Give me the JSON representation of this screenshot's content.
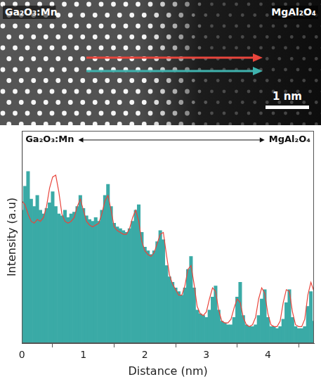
{
  "image": {
    "left_label": "Ga₂O₃:Mn",
    "right_label": "MgAl₂O₄",
    "scale_bar": "1 nm"
  },
  "chart_data": {
    "type": "bar",
    "x_label": "Distance (nm)",
    "y_label": "Intensity (a.u)",
    "annotation": {
      "left": "Ga₂O₃:Mn",
      "right": "MgAl₂O₄"
    },
    "xlim": [
      0,
      4.75
    ],
    "xticks": [
      0,
      1,
      2,
      3,
      4
    ],
    "ylim": [
      0,
      115
    ],
    "grid": false,
    "tick_labels": "x",
    "x": [
      0,
      0.05,
      0.1,
      0.15,
      0.2,
      0.25,
      0.3,
      0.35,
      0.4,
      0.45,
      0.5,
      0.55,
      0.6,
      0.65,
      0.7,
      0.75,
      0.8,
      0.85,
      0.9,
      0.95,
      1,
      1.05,
      1.1,
      1.15,
      1.2,
      1.25,
      1.3,
      1.35,
      1.4,
      1.45,
      1.5,
      1.55,
      1.6,
      1.65,
      1.7,
      1.75,
      1.8,
      1.85,
      1.9,
      1.95,
      2,
      2.05,
      2.1,
      2.15,
      2.2,
      2.25,
      2.3,
      2.35,
      2.4,
      2.45,
      2.5,
      2.55,
      2.6,
      2.65,
      2.7,
      2.75,
      2.8,
      2.85,
      2.9,
      2.95,
      3,
      3.05,
      3.1,
      3.15,
      3.2,
      3.25,
      3.3,
      3.35,
      3.4,
      3.45,
      3.5,
      3.55,
      3.6,
      3.65,
      3.7,
      3.75,
      3.8,
      3.85,
      3.9,
      3.95,
      4,
      4.05,
      4.1,
      4.15,
      4.2,
      4.25,
      4.3,
      4.35,
      4.4,
      4.45,
      4.5,
      4.55,
      4.6,
      4.65,
      4.7,
      4.75
    ],
    "series": [
      {
        "type": "bar",
        "color": "#3aaaa6",
        "values": [
          72,
          85,
          93,
          78,
          74,
          80,
          72,
          70,
          73,
          76,
          82,
          74,
          70,
          69,
          72,
          68,
          70,
          71,
          74,
          80,
          73,
          69,
          67,
          66,
          68,
          66,
          72,
          80,
          86,
          74,
          65,
          63,
          62,
          61,
          60,
          62,
          66,
          72,
          75,
          60,
          52,
          50,
          48,
          50,
          55,
          61,
          56,
          42,
          36,
          33,
          30,
          28,
          26,
          30,
          40,
          47,
          30,
          18,
          16,
          15,
          14,
          18,
          25,
          31,
          18,
          12,
          11,
          10,
          10,
          14,
          25,
          33,
          15,
          10,
          9,
          9,
          10,
          15,
          24,
          29,
          14,
          9,
          9,
          8,
          9,
          13,
          22,
          29,
          14,
          9,
          8,
          8,
          9,
          20,
          28,
          12
        ]
      },
      {
        "type": "line",
        "color": "#e8453c",
        "line_style": "solid",
        "marker": "none",
        "values": [
          77,
          75,
          70,
          66,
          65,
          67,
          66,
          68,
          74,
          84,
          90,
          91,
          82,
          70,
          66,
          65,
          66,
          68,
          74,
          78,
          72,
          66,
          64,
          63,
          64,
          65,
          70,
          77,
          80,
          72,
          63,
          61,
          60,
          59,
          59,
          62,
          68,
          72,
          66,
          55,
          50,
          48,
          47,
          49,
          54,
          59,
          60,
          48,
          37,
          32,
          29,
          26,
          26,
          31,
          40,
          42,
          32,
          20,
          16,
          15,
          17,
          24,
          30,
          28,
          18,
          12,
          11,
          11,
          13,
          19,
          24,
          22,
          14,
          10,
          9,
          10,
          14,
          24,
          30,
          27,
          16,
          10,
          9,
          9,
          12,
          22,
          29,
          28,
          17,
          10,
          9,
          9,
          13,
          26,
          33,
          28
        ]
      }
    ]
  }
}
